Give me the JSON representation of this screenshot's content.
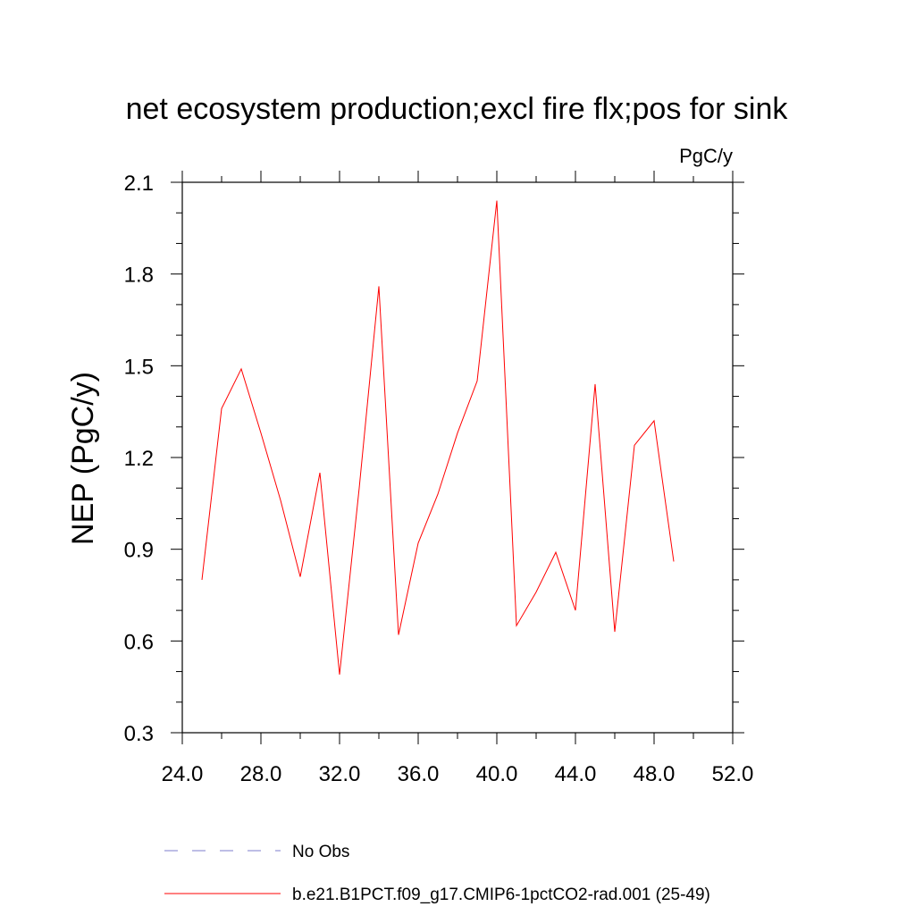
{
  "chart_data": {
    "type": "line",
    "title": "net ecosystem production;excl fire flx;pos for sink",
    "units_label": "PgC/y",
    "ylabel": "NEP  (PgC/y)",
    "xlabel": "",
    "xlim": [
      24,
      52
    ],
    "ylim": [
      0.3,
      2.1
    ],
    "x_ticks": [
      24,
      28,
      32,
      36,
      40,
      44,
      48,
      52
    ],
    "x_tick_labels": [
      "24.0",
      "28.0",
      "32.0",
      "36.0",
      "40.0",
      "44.0",
      "48.0",
      "52.0"
    ],
    "y_ticks": [
      0.3,
      0.6,
      0.9,
      1.2,
      1.5,
      1.8,
      2.1
    ],
    "y_tick_labels": [
      "0.3",
      "0.6",
      "0.9",
      "1.2",
      "1.5",
      "1.8",
      "2.1"
    ],
    "grid": false,
    "legend_position": "bottom",
    "series": [
      {
        "name": "b.e21.B1PCT.f09_g17.CMIP6-1pctCO2-rad.001 (25-49)",
        "color": "#ff0000",
        "style": "solid",
        "x": [
          25,
          26,
          27,
          28,
          29,
          30,
          31,
          32,
          33,
          34,
          35,
          36,
          37,
          38,
          39,
          40,
          41,
          42,
          43,
          44,
          45,
          46,
          47,
          48,
          49
        ],
        "y": [
          0.8,
          1.36,
          1.49,
          1.28,
          1.06,
          0.81,
          1.15,
          0.49,
          1.1,
          1.76,
          0.62,
          0.92,
          1.08,
          1.28,
          1.45,
          2.04,
          0.65,
          0.76,
          0.89,
          0.7,
          1.44,
          0.63,
          1.24,
          1.32,
          0.86
        ]
      }
    ],
    "legend": [
      {
        "label": "No Obs",
        "color": "#7d7dcc",
        "style": "dashed"
      },
      {
        "label": "b.e21.B1PCT.f09_g17.CMIP6-1pctCO2-rad.001 (25-49)",
        "color": "#ff0000",
        "style": "solid"
      }
    ]
  }
}
